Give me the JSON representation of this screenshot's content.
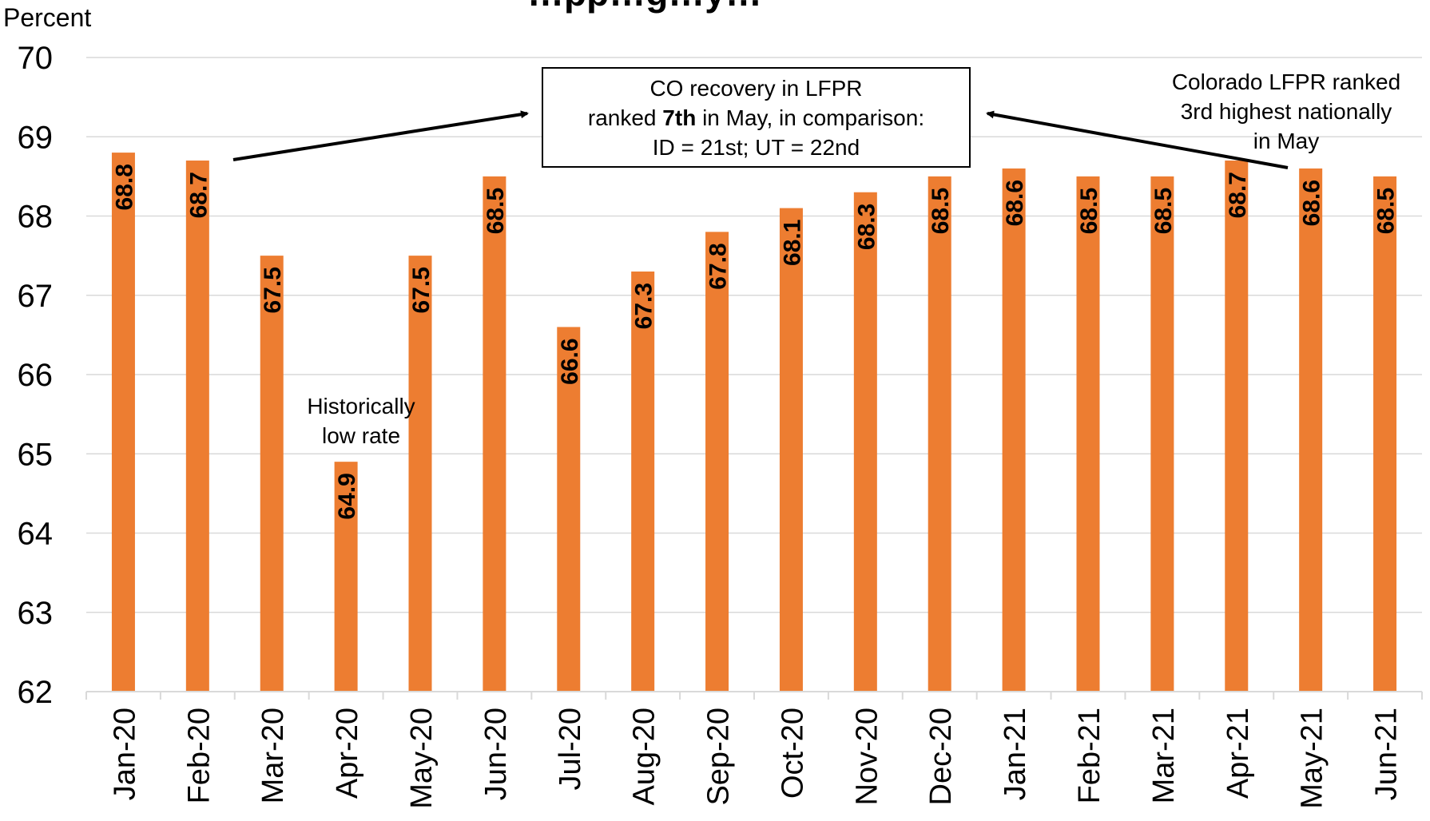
{
  "chart_data": {
    "type": "bar",
    "title": "…pp…g…y…",
    "ylabel": "Percent",
    "ylim": [
      62,
      70
    ],
    "yticks": [
      "70",
      "69",
      "68",
      "67",
      "66",
      "65",
      "64",
      "63",
      "62"
    ],
    "categories": [
      "Jan-20",
      "Feb-20",
      "Mar-20",
      "Apr-20",
      "May-20",
      "Jun-20",
      "Jul-20",
      "Aug-20",
      "Sep-20",
      "Oct-20",
      "Nov-20",
      "Dec-20",
      "Jan-21",
      "Feb-21",
      "Mar-21",
      "Apr-21",
      "May-21",
      "Jun-21"
    ],
    "values": [
      68.8,
      68.7,
      67.5,
      64.9,
      67.5,
      68.5,
      66.6,
      67.3,
      67.8,
      68.1,
      68.3,
      68.5,
      68.6,
      68.5,
      68.5,
      68.7,
      68.6,
      68.5
    ],
    "data_labels": [
      "68.8",
      "68.7",
      "67.5",
      "64.9",
      "67.5",
      "68.5",
      "66.6",
      "67.3",
      "67.8",
      "68.1",
      "68.3",
      "68.5",
      "68.6",
      "68.5",
      "68.5",
      "68.7",
      "68.6",
      "68.5"
    ],
    "bar_color": "#ED7D31",
    "grid": true,
    "legend": "none",
    "annotations": {
      "callout": {
        "line1": "CO recovery in LFPR",
        "line2_pre": "ranked ",
        "line2_bold": "7th",
        "line2_post": " in May, in comparison:",
        "line3": "ID = 21st; UT = 22nd"
      },
      "right_note": [
        "Colorado LFPR ranked",
        "3rd highest nationally",
        "in May"
      ],
      "apr_note": [
        "Historically",
        "low rate"
      ]
    }
  }
}
